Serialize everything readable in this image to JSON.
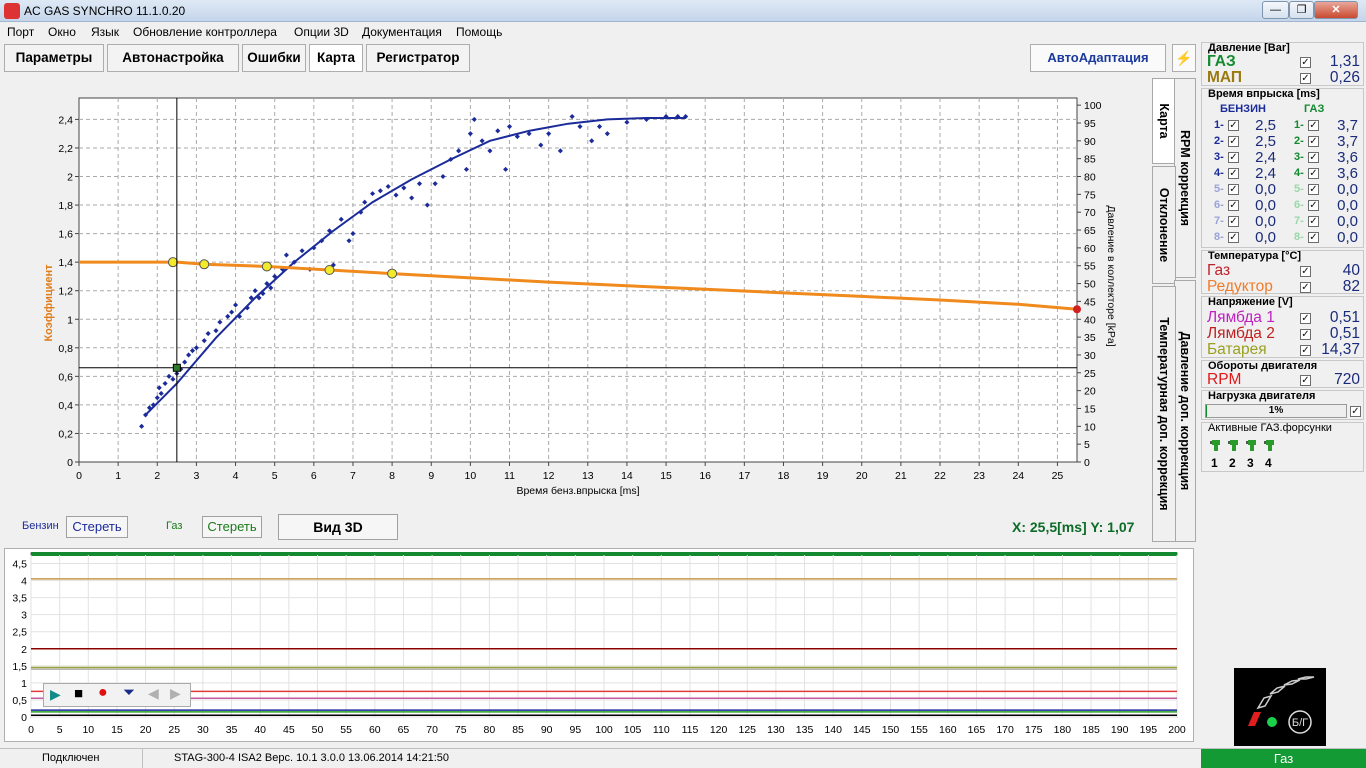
{
  "window": {
    "title": "AC GAS SYNCHRO  11.1.0.20",
    "minimize": "—",
    "restore": "❐",
    "close": "✕"
  },
  "menu": [
    "Порт",
    "Окно",
    "Язык",
    "Обновление контроллера",
    "Опции 3D",
    "Документация",
    "Помощь"
  ],
  "toolbar": {
    "tabs": [
      "Параметры",
      "Автонастройка",
      "Ошибки",
      "Карта",
      "Регистратор"
    ],
    "active_tab": "Карта",
    "autoadapt": "АвтоАдаптация"
  },
  "side_tabs": [
    "Карта",
    "RPM коррекция",
    "Отклонение",
    "Давление доп. коррекция",
    "Температурная доп. коррекция"
  ],
  "controls": {
    "petrol_label": "Бензин",
    "petrol_clear": "Стереть",
    "gas_label": "Газ",
    "gas_clear": "Стереть",
    "view3d": "Вид 3D",
    "xy_readout": "X: 25,5[ms]  Y: 1,07"
  },
  "chart_data": [
    {
      "type": "scatter",
      "xlabel": "Время бенз.впрыска [ms]",
      "ylabel": "Коэффициент",
      "y2label": "Давление в коллекторе [kPa]",
      "xlim": [
        0,
        25.5
      ],
      "ylim": [
        0,
        2.55
      ],
      "y2lim": [
        0,
        100
      ],
      "x_ticks": [
        0,
        1,
        2,
        3,
        4,
        5,
        6,
        7,
        8,
        9,
        10,
        11,
        12,
        13,
        14,
        15,
        16,
        17,
        18,
        19,
        20,
        21,
        22,
        23,
        24,
        25
      ],
      "y_ticks": [
        0,
        0.2,
        0.4,
        0.6,
        0.8,
        1,
        1.2,
        1.4,
        1.6,
        1.8,
        2,
        2.2,
        2.4
      ],
      "y_tick_labels": [
        "0",
        "0,2",
        "0,4",
        "0,6",
        "0,8",
        "1",
        "1,2",
        "1,4",
        "1,6",
        "1,8",
        "2",
        "2,2",
        "2,4"
      ],
      "y2_ticks": [
        0,
        5,
        10,
        15,
        20,
        25,
        30,
        35,
        40,
        45,
        50,
        55,
        60,
        65,
        70,
        75,
        80,
        85,
        90,
        95,
        100
      ],
      "grid": true,
      "cursor": {
        "x": 2.5,
        "y": 0.66
      },
      "series": [
        {
          "kind": "scatter",
          "color": "#1c2b9a",
          "points": [
            [
              1.6,
              0.25
            ],
            [
              1.7,
              0.33
            ],
            [
              1.8,
              0.38
            ],
            [
              1.9,
              0.4
            ],
            [
              2.0,
              0.45
            ],
            [
              2.05,
              0.52
            ],
            [
              2.1,
              0.48
            ],
            [
              2.2,
              0.55
            ],
            [
              2.3,
              0.6
            ],
            [
              2.4,
              0.58
            ],
            [
              2.5,
              0.62
            ],
            [
              2.6,
              0.65
            ],
            [
              2.7,
              0.7
            ],
            [
              2.8,
              0.75
            ],
            [
              2.9,
              0.78
            ],
            [
              3.0,
              0.8
            ],
            [
              3.2,
              0.85
            ],
            [
              3.3,
              0.9
            ],
            [
              3.5,
              0.92
            ],
            [
              3.6,
              0.98
            ],
            [
              3.8,
              1.02
            ],
            [
              3.9,
              1.05
            ],
            [
              4.0,
              1.1
            ],
            [
              4.1,
              1.02
            ],
            [
              4.3,
              1.08
            ],
            [
              4.4,
              1.15
            ],
            [
              4.5,
              1.2
            ],
            [
              4.6,
              1.15
            ],
            [
              4.7,
              1.18
            ],
            [
              4.8,
              1.25
            ],
            [
              4.9,
              1.22
            ],
            [
              5.0,
              1.3
            ],
            [
              5.2,
              1.35
            ],
            [
              5.3,
              1.45
            ],
            [
              5.5,
              1.4
            ],
            [
              5.7,
              1.48
            ],
            [
              5.9,
              1.35
            ],
            [
              6.0,
              1.5
            ],
            [
              6.2,
              1.55
            ],
            [
              6.4,
              1.62
            ],
            [
              6.5,
              1.38
            ],
            [
              6.7,
              1.7
            ],
            [
              6.9,
              1.55
            ],
            [
              7.0,
              1.6
            ],
            [
              7.2,
              1.75
            ],
            [
              7.3,
              1.82
            ],
            [
              7.5,
              1.88
            ],
            [
              7.7,
              1.9
            ],
            [
              7.9,
              1.93
            ],
            [
              8.1,
              1.87
            ],
            [
              8.3,
              1.92
            ],
            [
              8.5,
              1.85
            ],
            [
              8.7,
              1.95
            ],
            [
              8.9,
              1.8
            ],
            [
              9.1,
              1.95
            ],
            [
              9.3,
              2.0
            ],
            [
              9.5,
              2.12
            ],
            [
              9.7,
              2.18
            ],
            [
              9.9,
              2.05
            ],
            [
              10.0,
              2.3
            ],
            [
              10.1,
              2.4
            ],
            [
              10.3,
              2.25
            ],
            [
              10.5,
              2.18
            ],
            [
              10.7,
              2.32
            ],
            [
              10.9,
              2.05
            ],
            [
              11.0,
              2.35
            ],
            [
              11.2,
              2.28
            ],
            [
              11.5,
              2.3
            ],
            [
              11.8,
              2.22
            ],
            [
              12.0,
              2.3
            ],
            [
              12.3,
              2.18
            ],
            [
              12.6,
              2.42
            ],
            [
              12.8,
              2.35
            ],
            [
              13.1,
              2.25
            ],
            [
              13.3,
              2.35
            ],
            [
              13.5,
              2.3
            ],
            [
              14.0,
              2.38
            ],
            [
              14.5,
              2.4
            ],
            [
              15.0,
              2.42
            ],
            [
              15.3,
              2.42
            ],
            [
              15.5,
              2.42
            ]
          ]
        },
        {
          "kind": "curve",
          "color": "#1c2b9a",
          "points": [
            [
              1.7,
              0.33
            ],
            [
              2.5,
              0.55
            ],
            [
              3.5,
              0.87
            ],
            [
              4.5,
              1.15
            ],
            [
              5.5,
              1.4
            ],
            [
              6.5,
              1.62
            ],
            [
              7.5,
              1.82
            ],
            [
              8.5,
              1.98
            ],
            [
              9.5,
              2.12
            ],
            [
              10.5,
              2.25
            ],
            [
              11.5,
              2.32
            ],
            [
              12.5,
              2.37
            ],
            [
              13.5,
              2.4
            ],
            [
              14.5,
              2.41
            ],
            [
              15.5,
              2.41
            ]
          ]
        },
        {
          "kind": "line",
          "color": "#f08a1c",
          "points": [
            [
              0,
              1.4
            ],
            [
              2.5,
              1.4
            ],
            [
              3.2,
              1.385
            ],
            [
              4.8,
              1.37
            ],
            [
              6.4,
              1.345
            ],
            [
              8.0,
              1.32
            ],
            [
              10,
              1.29
            ],
            [
              12,
              1.26
            ],
            [
              14,
              1.235
            ],
            [
              16,
              1.21
            ],
            [
              18,
              1.185
            ],
            [
              20,
              1.16
            ],
            [
              22,
              1.135
            ],
            [
              24,
              1.105
            ],
            [
              25.5,
              1.07
            ]
          ]
        },
        {
          "kind": "markers",
          "color": "#f2ea2a",
          "points": [
            [
              2.4,
              1.4
            ],
            [
              3.2,
              1.385
            ],
            [
              4.8,
              1.37
            ],
            [
              6.4,
              1.345
            ],
            [
              8.0,
              1.32
            ]
          ]
        }
      ]
    },
    {
      "type": "line",
      "x_ticks": [
        0,
        5,
        10,
        15,
        20,
        25,
        30,
        35,
        40,
        45,
        50,
        55,
        60,
        65,
        70,
        75,
        80,
        85,
        90,
        95,
        100,
        105,
        110,
        115,
        120,
        125,
        130,
        135,
        140,
        145,
        150,
        155,
        160,
        165,
        170,
        175,
        180,
        185,
        190,
        195,
        200
      ],
      "y_ticks": [
        0,
        0.5,
        1,
        1.5,
        2,
        2.5,
        3,
        3.5,
        4,
        4.5
      ],
      "y_tick_labels": [
        "0",
        "0,5",
        "1",
        "1,5",
        "2",
        "2,5",
        "3",
        "3,5",
        "4",
        "4,5"
      ],
      "xlim": [
        0,
        200
      ],
      "ylim": [
        0,
        4.75
      ],
      "grid": true,
      "series": [
        {
          "color": "#c8964a",
          "values": [
            4.05,
            4.05
          ]
        },
        {
          "color": "#8b0000",
          "values": [
            2.0,
            2.0
          ]
        },
        {
          "color": "#9aa33a",
          "values": [
            1.45,
            1.45
          ]
        },
        {
          "color": "#b8b8b8",
          "values": [
            1.4,
            1.4
          ]
        },
        {
          "color": "#e03a3a",
          "values": [
            0.75,
            0.75
          ]
        },
        {
          "color": "#c55aa0",
          "values": [
            0.55,
            0.55
          ]
        },
        {
          "color": "#1c2b9a",
          "values": [
            0.2,
            0.2
          ]
        },
        {
          "color": "#2aa02a",
          "values": [
            0.15,
            0.15
          ]
        },
        {
          "color": "#000000",
          "values": [
            0.05,
            0.05
          ]
        }
      ]
    }
  ],
  "player": [
    "▶",
    "■",
    "●",
    "⏷",
    "◀",
    "▶"
  ],
  "right": {
    "pressure_title": "Давление [Bar]",
    "gas_label": "ГАЗ",
    "gas_value": "1,31",
    "map_label": "МАП",
    "map_value": "0,26",
    "inj_title": "Время впрыска [ms]",
    "petrol_col": "БЕНЗИН",
    "gas_col": "ГАЗ",
    "injectors": [
      {
        "n": "1-",
        "b": "2,5",
        "g": "3,7"
      },
      {
        "n": "2-",
        "b": "2,5",
        "g": "3,7"
      },
      {
        "n": "3-",
        "b": "2,4",
        "g": "3,6"
      },
      {
        "n": "4-",
        "b": "2,4",
        "g": "3,6"
      },
      {
        "n": "5-",
        "b": "0,0",
        "g": "0,0"
      },
      {
        "n": "6-",
        "b": "0,0",
        "g": "0,0"
      },
      {
        "n": "7-",
        "b": "0,0",
        "g": "0,0"
      },
      {
        "n": "8-",
        "b": "0,0",
        "g": "0,0"
      }
    ],
    "temp_title": "Температура  [°C]",
    "temp_gas_label": "Газ",
    "temp_gas_value": "40",
    "temp_red_label": "Редуктор",
    "temp_red_value": "82",
    "volt_title": "Напряжение [V]",
    "lambda1_label": "Лямбда 1",
    "lambda1_value": "0,51",
    "lambda2_label": "Лямбда 2",
    "lambda2_value": "0,51",
    "battery_label": "Батарея",
    "battery_value": "14,37",
    "rpm_title": "Обороты двигателя",
    "rpm_label": "RPM",
    "rpm_value": "720",
    "load_title": "Нагрузка двигателя",
    "load_value": "1%",
    "active_title": "Активные ГАЗ.форсунки",
    "active_injectors": [
      "1",
      "2",
      "3",
      "4"
    ],
    "bg_label": "Б/Г"
  },
  "status": {
    "connected": "Подключен",
    "device": "STAG-300-4 ISA2  Верс. 10.1  3.0.0   13.06.2014 14:21:50",
    "fuel": "Газ"
  }
}
